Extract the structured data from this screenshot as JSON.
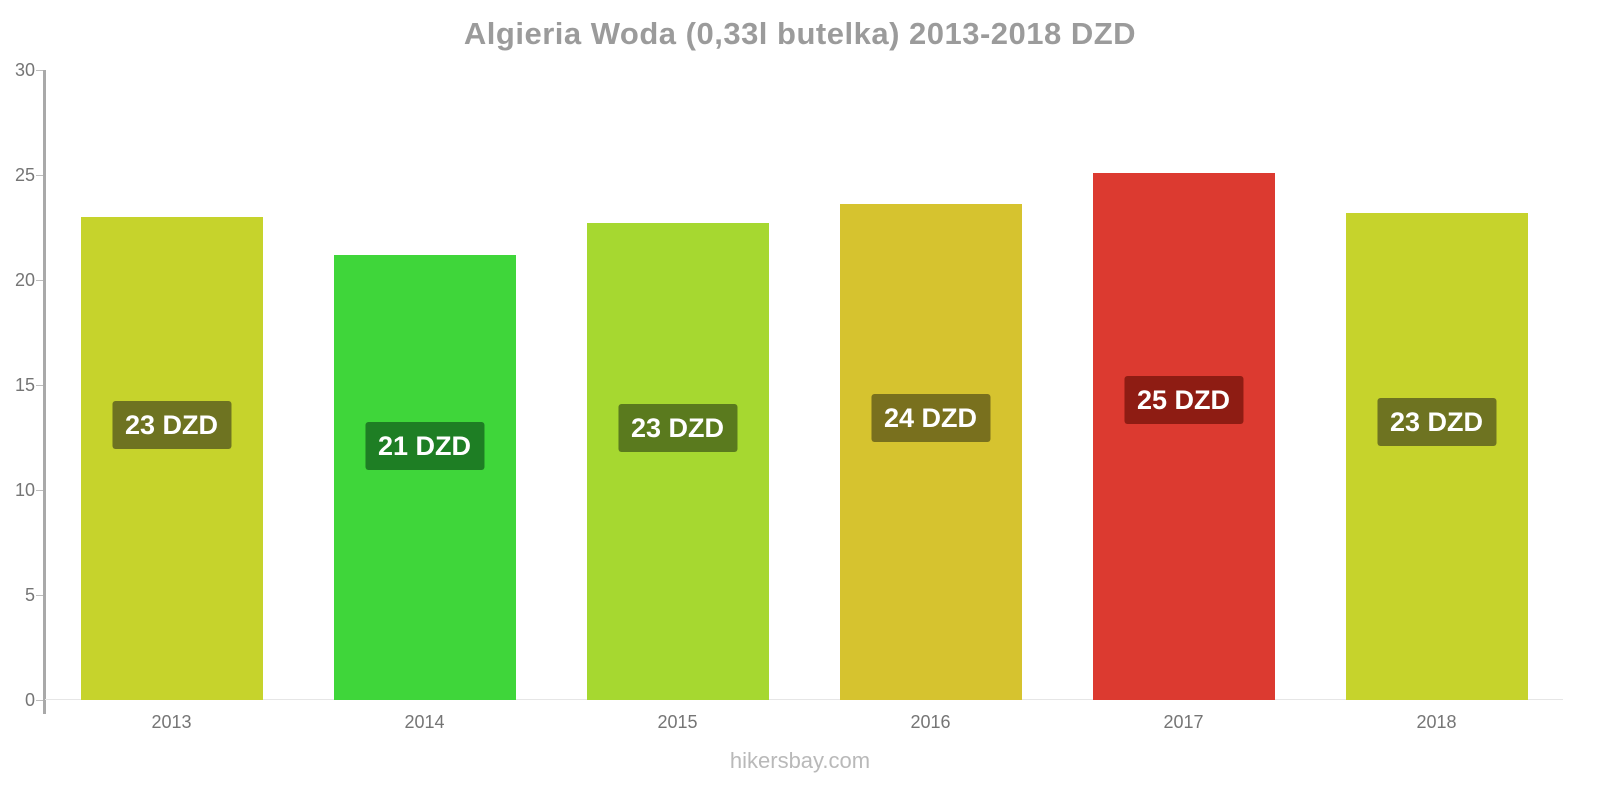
{
  "title": "Algieria Woda (0,33l butelka) 2013-2018 DZD",
  "footer": "hikersbay.com",
  "chart_data": {
    "type": "bar",
    "title": "Algieria Woda (0,33l butelka) 2013-2018 DZD",
    "categories": [
      "2013",
      "2014",
      "2015",
      "2016",
      "2017",
      "2018"
    ],
    "values": [
      23.0,
      21.2,
      22.7,
      23.6,
      25.1,
      23.2
    ],
    "bar_labels": [
      "23 DZD",
      "21 DZD",
      "23 DZD",
      "24 DZD",
      "25 DZD",
      "23 DZD"
    ],
    "bar_colors": [
      "#c6d32c",
      "#3fd63a",
      "#a6d830",
      "#d6c32f",
      "#dc3a30",
      "#c6d32c"
    ],
    "label_bg_colors": [
      "#6e7321",
      "#1e7e24",
      "#5a7a1e",
      "#79701e",
      "#8e1c13",
      "#6e7321"
    ],
    "xlabel": "",
    "ylabel": "",
    "ylim": [
      0,
      30
    ],
    "y_ticks": [
      0,
      5,
      10,
      15,
      20,
      25,
      30
    ],
    "grid": false,
    "legend": false,
    "watermark": "hikersbay.com"
  }
}
